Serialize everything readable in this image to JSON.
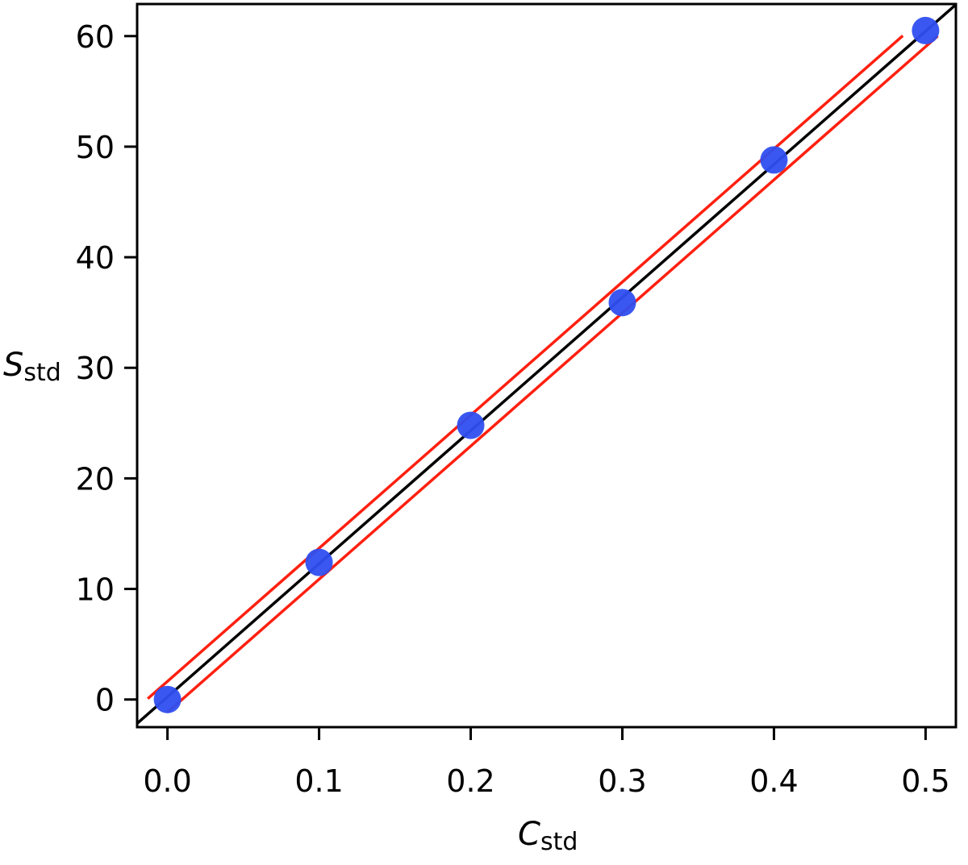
{
  "chart_data": {
    "type": "scatter",
    "title": "",
    "xlabel": {
      "main": "C",
      "sub": "std"
    },
    "ylabel": {
      "main": "S",
      "sub": "std"
    },
    "xlim": [
      -0.02,
      0.52
    ],
    "ylim": [
      -2.5,
      62.9
    ],
    "xticks": [
      "0.0",
      "0.1",
      "0.2",
      "0.3",
      "0.4",
      "0.5"
    ],
    "xtick_values": [
      0,
      0.1,
      0.2,
      0.3,
      0.4,
      0.5
    ],
    "yticks": [
      "0",
      "10",
      "20",
      "30",
      "40",
      "50",
      "60"
    ],
    "ytick_values": [
      0,
      10,
      20,
      30,
      40,
      50,
      60
    ],
    "grid": false,
    "points": {
      "x": [
        0,
        0.1,
        0.2,
        0.3,
        0.4,
        0.5
      ],
      "y": [
        0,
        12.4,
        24.8,
        35.9,
        48.8,
        60.5
      ],
      "color": "#2f4ff0"
    },
    "fit_line": {
      "slope": 120.4,
      "intercept": 0.24,
      "color": "#000000"
    },
    "confidence_lines": [
      {
        "slope": 120.4,
        "intercept": 1.64,
        "x_range": [
          -0.013,
          0.485
        ],
        "color": "#ff2010"
      },
      {
        "slope": 120.4,
        "intercept": -1.16,
        "x_range": [
          0.0,
          0.508
        ],
        "color": "#ff2010"
      }
    ]
  }
}
